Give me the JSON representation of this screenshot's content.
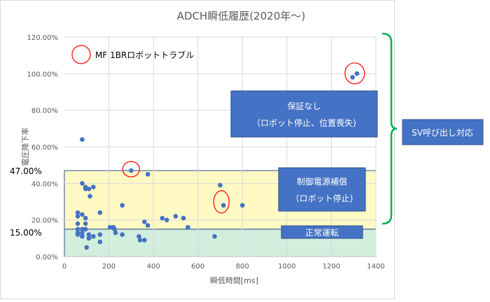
{
  "chart_data": {
    "type": "scatter",
    "title": "ADCH瞬低履歴(2020年～)",
    "xlabel": "瞬低時間[ms]",
    "ylabel": "電圧降下率",
    "xlim": [
      0,
      1400
    ],
    "ylim": [
      0,
      1.2
    ],
    "x_ticks": [
      0,
      200,
      400,
      600,
      800,
      1000,
      1200,
      1400
    ],
    "x_tick_labels": [
      "0",
      "200",
      "400",
      "600",
      "800",
      "1000",
      "1200",
      "1400"
    ],
    "y_ticks": [
      0,
      0.2,
      0.4,
      0.6,
      0.8,
      1.0,
      1.2
    ],
    "y_tick_labels": [
      "0.00%",
      "20.00%",
      "40.00%",
      "60.00%",
      "80.00%",
      "100.00%",
      "120.00%"
    ],
    "grid": true,
    "thresholds": [
      {
        "value": 0.47,
        "label": "47.00%"
      },
      {
        "value": 0.15,
        "label": "15.00%"
      }
    ],
    "zones": [
      {
        "from": 0,
        "to": 0.15,
        "color": "#d2eedc",
        "label": "正常運転"
      },
      {
        "from": 0.15,
        "to": 0.47,
        "color": "#fff9c4",
        "label": "制御電源補償\n（ロボット停止)"
      },
      {
        "from": 0.47,
        "to": 1.2,
        "color": "#ffffff",
        "label": "保証なし\n（ロボット停止、位置喪失)"
      }
    ],
    "bracket_label": "SV呼び出し対応",
    "legend_label": "MF 1BRロボットトラブル",
    "series": [
      {
        "color": "#4472c4",
        "points": [
          [
            80,
            0.64
          ],
          [
            60,
            0.24
          ],
          [
            60,
            0.22
          ],
          [
            60,
            0.18
          ],
          [
            60,
            0.15
          ],
          [
            60,
            0.13
          ],
          [
            60,
            0.12
          ],
          [
            80,
            0.4
          ],
          [
            80,
            0.23
          ],
          [
            80,
            0.15
          ],
          [
            80,
            0.13
          ],
          [
            80,
            0.11
          ],
          [
            95,
            0.38
          ],
          [
            95,
            0.37
          ],
          [
            95,
            0.21
          ],
          [
            95,
            0.18
          ],
          [
            95,
            0.15
          ],
          [
            100,
            0.05
          ],
          [
            110,
            0.37
          ],
          [
            110,
            0.12
          ],
          [
            110,
            0.1
          ],
          [
            115,
            0.33
          ],
          [
            130,
            0.38
          ],
          [
            130,
            0.11
          ],
          [
            160,
            0.24
          ],
          [
            160,
            0.12
          ],
          [
            160,
            0.08
          ],
          [
            205,
            0.16
          ],
          [
            220,
            0.16
          ],
          [
            225,
            0.15
          ],
          [
            230,
            0.13
          ],
          [
            260,
            0.28
          ],
          [
            260,
            0.12
          ],
          [
            335,
            0.11
          ],
          [
            340,
            0.09
          ],
          [
            360,
            0.19
          ],
          [
            360,
            0.09
          ],
          [
            375,
            0.45
          ],
          [
            375,
            0.17
          ],
          [
            440,
            0.21
          ],
          [
            460,
            0.2
          ],
          [
            500,
            0.22
          ],
          [
            535,
            0.21
          ],
          [
            555,
            0.16
          ],
          [
            675,
            0.11
          ],
          [
            700,
            0.39
          ],
          [
            800,
            0.28
          ]
        ]
      },
      {
        "color": "#4472c4",
        "name": "MF 1BRロボットトラブル",
        "points": [
          [
            300,
            0.47
          ],
          [
            715,
            0.28
          ],
          [
            1295,
            0.98
          ],
          [
            1315,
            1.0
          ]
        ]
      }
    ]
  }
}
